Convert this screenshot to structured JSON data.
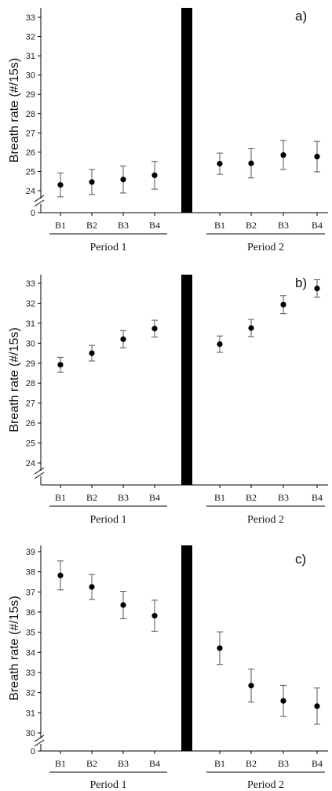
{
  "figure": {
    "background": "#ffffff",
    "ink": "#000000"
  },
  "chart_data": [
    {
      "type": "scatter",
      "panel_label": "a)",
      "ylabel": "Breath rate (#/15s)",
      "ylim": [
        23.3,
        33.5
      ],
      "axis_break": true,
      "y_ticks": [
        0,
        24,
        25,
        26,
        27,
        28,
        29,
        30,
        31,
        32,
        33
      ],
      "periods": [
        {
          "label": "Period 1",
          "categories": [
            "B1",
            "B2",
            "B3",
            "B4"
          ],
          "values": [
            24.3,
            24.45,
            24.58,
            24.8
          ],
          "errors": [
            0.62,
            0.65,
            0.7,
            0.72
          ]
        },
        {
          "label": "Period 2",
          "categories": [
            "B1",
            "B2",
            "B3",
            "B4"
          ],
          "values": [
            25.4,
            25.42,
            25.85,
            25.77
          ],
          "errors": [
            0.55,
            0.76,
            0.75,
            0.79
          ]
        }
      ]
    },
    {
      "type": "scatter",
      "panel_label": "b)",
      "ylabel": "Breath rate (#/15s)",
      "ylim": [
        23.3,
        33.5
      ],
      "axis_break": true,
      "y_ticks": [
        24,
        25,
        26,
        27,
        28,
        29,
        30,
        31,
        32,
        33
      ],
      "periods": [
        {
          "label": "Period 1",
          "categories": [
            "B1",
            "B2",
            "B3",
            "B4"
          ],
          "values": [
            28.92,
            29.5,
            30.2,
            30.73
          ],
          "errors": [
            0.37,
            0.39,
            0.43,
            0.42
          ]
        },
        {
          "label": "Period 2",
          "categories": [
            "B1",
            "B2",
            "B3",
            "B4"
          ],
          "values": [
            29.95,
            30.76,
            31.93,
            32.74
          ],
          "errors": [
            0.41,
            0.43,
            0.45,
            0.44
          ]
        }
      ]
    },
    {
      "type": "scatter",
      "panel_label": "c)",
      "ylabel": "Breath rate (#/15s)",
      "ylim": [
        29.3,
        39.1
      ],
      "axis_break": true,
      "y_ticks": [
        0,
        30,
        31,
        32,
        33,
        34,
        35,
        36,
        37,
        38,
        39
      ],
      "periods": [
        {
          "label": "Period 1",
          "categories": [
            "B1",
            "B2",
            "B3",
            "B4"
          ],
          "values": [
            37.82,
            37.25,
            36.35,
            35.82
          ],
          "errors": [
            0.72,
            0.62,
            0.68,
            0.77
          ]
        },
        {
          "label": "Period 2",
          "categories": [
            "B1",
            "B2",
            "B3",
            "B4"
          ],
          "values": [
            34.21,
            32.35,
            31.59,
            31.33
          ],
          "errors": [
            0.81,
            0.82,
            0.77,
            0.9
          ]
        }
      ]
    }
  ]
}
